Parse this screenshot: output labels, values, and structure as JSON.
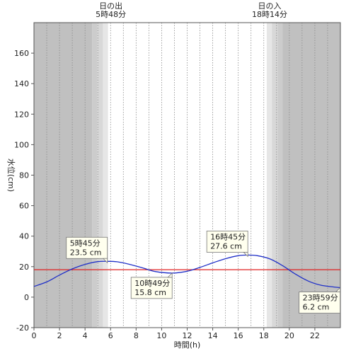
{
  "chart_data": {
    "type": "line",
    "xlabel": "時間(h)",
    "ylabel": "水位(cm)",
    "xlim": [
      0,
      24
    ],
    "ylim": [
      -20,
      180
    ],
    "x_ticks": [
      0,
      2,
      4,
      6,
      8,
      10,
      12,
      14,
      16,
      18,
      20,
      22
    ],
    "x_tick_labels": [
      "0",
      "2",
      "4",
      "6",
      "8",
      "10",
      "12",
      "14",
      "16",
      "18",
      "20",
      "22"
    ],
    "y_ticks": [
      -20,
      0,
      20,
      40,
      60,
      80,
      100,
      120,
      140,
      160
    ],
    "y_tick_labels": [
      "-20",
      "0",
      "20",
      "40",
      "60",
      "80",
      "100",
      "120",
      "140",
      "160"
    ],
    "grid": "vertical dotted lines every 1 hour",
    "reference_line": {
      "y": 18,
      "color": "#e02020"
    },
    "series": [
      {
        "color": "#2030c8",
        "x": [
          0,
          1,
          2,
          3,
          4,
          5,
          5.75,
          6.5,
          7.5,
          8.5,
          9.5,
          10.82,
          12,
          13,
          14,
          15,
          16,
          16.75,
          17.5,
          18.5,
          19.5,
          20.5,
          21.5,
          22.5,
          23.98
        ],
        "values": [
          7,
          10,
          14.5,
          18.5,
          21.5,
          23.3,
          23.5,
          23.2,
          21.5,
          19.2,
          16.8,
          15.8,
          17,
          19.5,
          22.5,
          25.2,
          27.2,
          27.6,
          27.2,
          25,
          20.5,
          15,
          10.5,
          7.8,
          6.2
        ]
      }
    ],
    "night_shading": [
      {
        "from": 0,
        "to": 5.8,
        "color": "#c0c0c0"
      },
      {
        "from": 18.233,
        "to": 24,
        "color": "#c0c0c0"
      }
    ],
    "sun_events": [
      {
        "name": "日の出",
        "time": "5時48分",
        "hour": 5.8
      },
      {
        "name": "日の入",
        "time": "18時14分",
        "hour": 18.233
      }
    ],
    "annotations": [
      {
        "time": "5時45分",
        "level": "23.5 cm",
        "x": 5.75,
        "y": 23.5,
        "placement": "above-left"
      },
      {
        "time": "10時49分",
        "level": "15.8 cm",
        "x": 10.82,
        "y": 15.8,
        "placement": "below-left"
      },
      {
        "time": "16時45分",
        "level": "27.6 cm",
        "x": 16.75,
        "y": 27.6,
        "placement": "above-left"
      },
      {
        "time": "23時59分",
        "level": "6.2 cm",
        "x": 23.98,
        "y": 6.2,
        "placement": "below-left"
      }
    ]
  }
}
